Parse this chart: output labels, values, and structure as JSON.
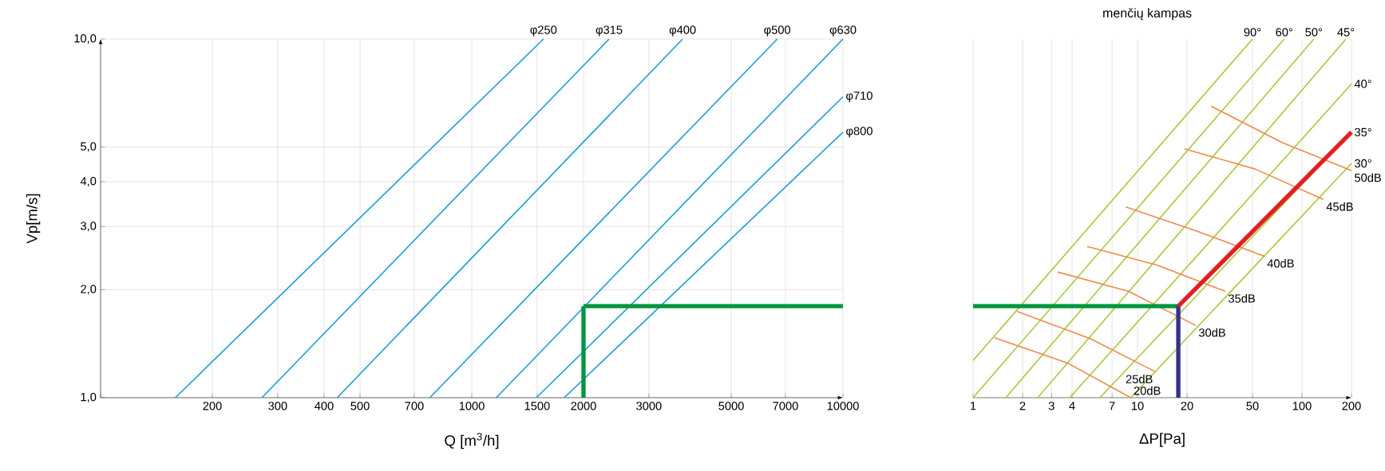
{
  "chart_data": [
    {
      "type": "line",
      "xlabel": "Q [m$^{3}$/h]",
      "ylabel": "Vp[m/s]",
      "log": "xy",
      "grid": true,
      "marker": "none",
      "line_style": "solid",
      "xlim": [
        100,
        10000
      ],
      "ylim": [
        1,
        10
      ],
      "xticks": [
        {
          "value": 100,
          "label": null
        },
        200,
        300,
        400,
        500,
        700,
        1000,
        1500,
        2000,
        3000,
        5000,
        7000,
        10000
      ],
      "yticks": [
        {
          "value": 1,
          "label": "1,0"
        },
        {
          "value": 2,
          "label": "2,0"
        },
        {
          "value": 3,
          "label": "3,0"
        },
        {
          "value": 4,
          "label": "4,0"
        },
        {
          "value": 5,
          "label": "5,0"
        },
        {
          "value": 10,
          "label": "10,0"
        }
      ],
      "series": [
        {
          "name": "φ250",
          "color": "#1a9bd7",
          "x": [
            159,
            1560
          ],
          "values": [
            1,
            10
          ]
        },
        {
          "name": "φ315",
          "color": "#1a9bd7",
          "x": [
            272,
            2344
          ],
          "values": [
            1,
            10
          ]
        },
        {
          "name": "φ400",
          "color": "#1a9bd7",
          "x": [
            434,
            3698
          ],
          "values": [
            1,
            10
          ]
        },
        {
          "name": "φ500",
          "color": "#1a9bd7",
          "x": [
            771,
            6651
          ],
          "values": [
            1,
            10
          ]
        },
        {
          "name": "φ630",
          "color": "#1a9bd7",
          "x": [
            1164,
            10000
          ],
          "values": [
            1,
            10
          ]
        },
        {
          "name": "φ710",
          "color": "#1a9bd7",
          "x": [
            1493,
            10000
          ],
          "values": [
            1,
            6.9
          ]
        },
        {
          "name": "φ800",
          "color": "#1a9bd7",
          "x": [
            1775,
            10000
          ],
          "values": [
            1,
            5.5
          ]
        },
        {
          "color": "#00963f",
          "x": [
            2000,
            2000
          ],
          "values": [
            1,
            1.8
          ]
        },
        {
          "color": "#00963f",
          "x": [
            2000,
            10000
          ],
          "values": [
            1.8,
            1.8
          ]
        }
      ]
    },
    {
      "type": "line",
      "xlabel": "ΔP[Pa]",
      "log": "xy",
      "grid": true,
      "marker": "none",
      "line_style": "solid",
      "tick_labels": "x",
      "annotations": [
        "menčių kampas"
      ],
      "xlim": [
        1,
        200
      ],
      "ylim": [
        1,
        10
      ],
      "xticks": [
        1,
        2,
        3,
        4,
        7,
        10,
        20,
        50,
        100,
        200
      ],
      "yticks": [
        {
          "value": 1,
          "label": null
        },
        {
          "value": 2,
          "label": null
        },
        {
          "value": 3,
          "label": null
        },
        {
          "value": 4,
          "label": null
        },
        {
          "value": 5,
          "label": null
        },
        {
          "value": 10,
          "label": null
        }
      ],
      "series": [
        {
          "name": "90°",
          "color": "#a8c83c",
          "x": [
            1,
            50
          ],
          "values": [
            1.27,
            10
          ]
        },
        {
          "name": "60°",
          "color": "#a8c83c",
          "x": [
            1,
            78
          ],
          "values": [
            1,
            10
          ]
        },
        {
          "name": "50°",
          "color": "#a8c83c",
          "x": [
            1.58,
            118
          ],
          "values": [
            1,
            10
          ]
        },
        {
          "name": "45°",
          "color": "#a8c83c",
          "x": [
            2.47,
            185
          ],
          "values": [
            1,
            10
          ]
        },
        {
          "name": "40°",
          "color": "#a8c83c",
          "x": [
            3.87,
            200
          ],
          "values": [
            1,
            7.5
          ]
        },
        {
          "name": "35°",
          "color": "#a8c83c",
          "x": [
            5.9,
            200
          ],
          "values": [
            1,
            5.5
          ]
        },
        {
          "name": "30°",
          "color": "#a8c83c",
          "x": [
            9.1,
            200
          ],
          "values": [
            1,
            4.5
          ]
        },
        {
          "name": "20dB",
          "color": "#f08a4b",
          "x": [
            1.35,
            3.74,
            9.1
          ],
          "values": [
            1.47,
            1.25,
            1.0
          ]
        },
        {
          "name": "25dB",
          "color": "#f08a4b",
          "x": [
            1.85,
            5.17,
            12.9
          ],
          "values": [
            1.74,
            1.46,
            1.18
          ]
        },
        {
          "name": "30dB",
          "color": "#f08a4b",
          "x": [
            3.27,
            8.8,
            22.6
          ],
          "values": [
            2.24,
            1.98,
            1.59
          ]
        },
        {
          "name": "35dB",
          "color": "#f08a4b",
          "x": [
            4.94,
            13.2,
            34.2
          ],
          "values": [
            2.64,
            2.34,
            1.98
          ]
        },
        {
          "name": "40dB",
          "color": "#f08a4b",
          "x": [
            8.5,
            23.1,
            59
          ],
          "values": [
            3.4,
            2.91,
            2.48
          ]
        },
        {
          "name": "45dB",
          "color": "#f08a4b",
          "x": [
            19.3,
            52,
            135
          ],
          "values": [
            4.94,
            4.34,
            3.57
          ]
        },
        {
          "name": "50dB",
          "color": "#f08a4b",
          "x": [
            28,
            76,
            200
          ],
          "values": [
            6.5,
            5.14,
            4.3
          ]
        },
        {
          "color": "#00963f",
          "x": [
            1,
            17.7
          ],
          "values": [
            1.8,
            1.8
          ]
        },
        {
          "color": "#35308a",
          "x": [
            17.7,
            17.7
          ],
          "values": [
            1.8,
            1
          ]
        },
        {
          "color": "#e31e24",
          "x": [
            200,
            17.7
          ],
          "values": [
            5.5,
            1.8
          ]
        }
      ]
    }
  ]
}
